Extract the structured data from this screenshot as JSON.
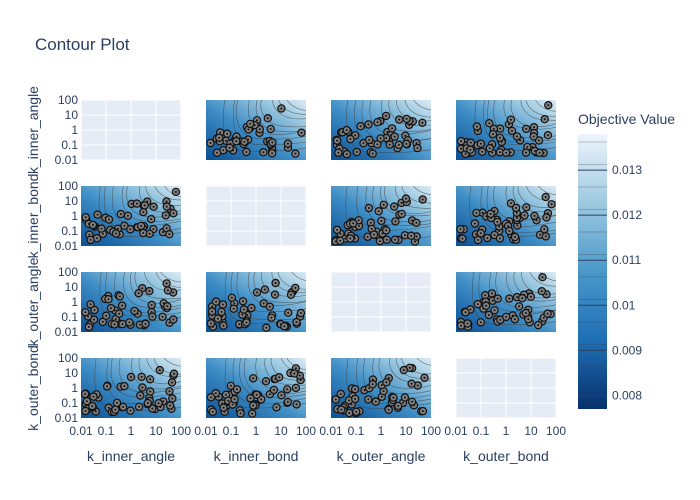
{
  "chart_data": {
    "type": "contour",
    "title": "Contour Plot",
    "parameters": [
      "k_inner_angle",
      "k_inner_bond",
      "k_outer_angle",
      "k_outer_bond"
    ],
    "axis_scale": "log",
    "x_ticks": [
      "0.01",
      "0.1",
      "1",
      "10",
      "100"
    ],
    "y_ticks": [
      "100",
      "10",
      "1",
      "0.1",
      "0.01"
    ],
    "colorbar": {
      "title": "Objective Value",
      "ticks": [
        "0.013",
        "0.012",
        "0.011",
        "0.01",
        "0.009",
        "0.008"
      ],
      "tick_values": [
        0.013,
        0.012,
        0.011,
        0.01,
        0.009,
        0.008
      ],
      "range": [
        0.0077,
        0.0138
      ],
      "colorscale": "Blues (reversed)"
    },
    "grid": true,
    "legend": "colorbar on the right"
  }
}
